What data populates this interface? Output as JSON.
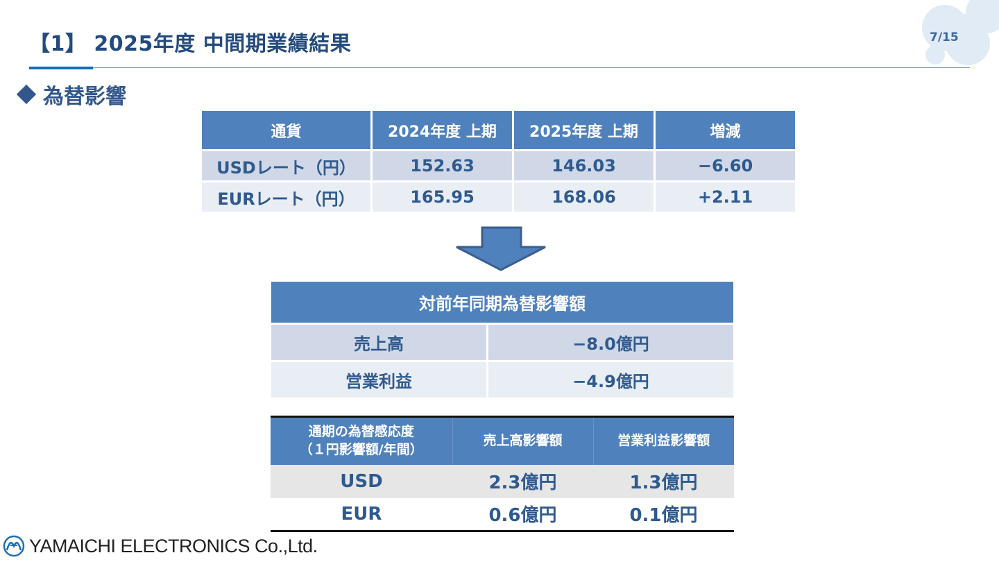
{
  "header": {
    "title": "【1】 2025年度 中間期業績結果",
    "page": "7/15"
  },
  "section": {
    "title": "為替影響"
  },
  "rates_table": {
    "headers": [
      "通貨",
      "2024年度 上期",
      "2025年度 上期",
      "増減"
    ],
    "rows": [
      [
        "USDレート（円）",
        "152.63",
        "146.03",
        "−6.60"
      ],
      [
        "EURレート（円）",
        "165.95",
        "168.06",
        "+2.11"
      ]
    ]
  },
  "impact_table": {
    "header": "対前年同期為替影響額",
    "rows": [
      [
        "売上高",
        "−8.0億円"
      ],
      [
        "営業利益",
        "−4.9億円"
      ]
    ]
  },
  "sensitivity_table": {
    "headers": [
      "通期の為替感応度",
      "（１円影響額/年間）",
      "売上高影響額",
      "営業利益影響額"
    ],
    "rows": [
      [
        "USD",
        "2.3億円",
        "1.3億円"
      ],
      [
        "EUR",
        "0.6億円",
        "0.1億円"
      ]
    ]
  },
  "footer": {
    "logo": "YAMAICHI ELECTRONICS Co.,Ltd."
  },
  "colors": {
    "header_fill": "#4f81bd",
    "row_dark": "#d0d8e8",
    "row_light": "#e9edf4",
    "text": "#2f5a8e",
    "title": "#234b7d"
  }
}
